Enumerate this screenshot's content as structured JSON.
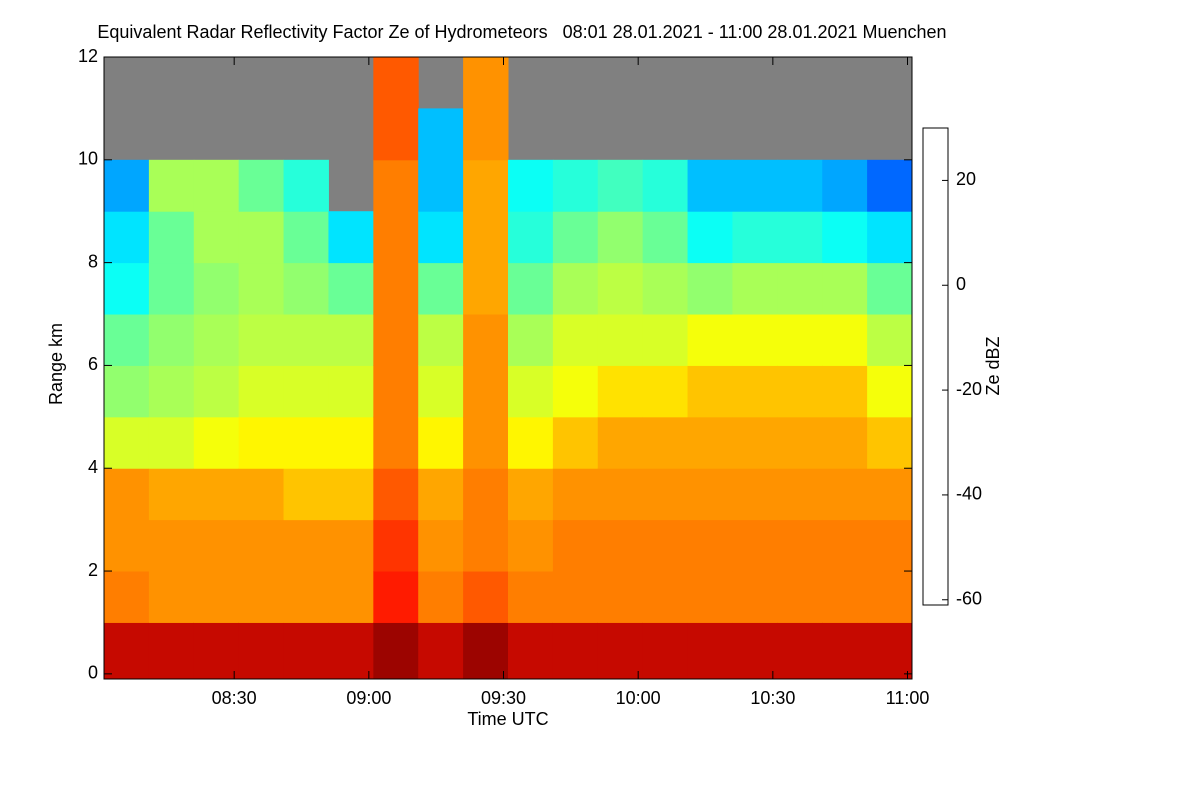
{
  "chart_data": {
    "type": "heatmap",
    "title": "Equivalent Radar Reflectivity Factor Ze of Hydrometeors   08:01 28.01.2021 - 11:00 28.01.2021 Muenchen",
    "x_label": "Time UTC",
    "y_label": "Range km",
    "colorbar_label": "Ze dBZ",
    "xlim": [
      481,
      661
    ],
    "xticks": [
      {
        "value": 510,
        "label": "08:30"
      },
      {
        "value": 540,
        "label": "09:00"
      },
      {
        "value": 570,
        "label": "09:30"
      },
      {
        "value": 600,
        "label": "10:00"
      },
      {
        "value": 630,
        "label": "10:30"
      },
      {
        "value": 660,
        "label": "11:00"
      }
    ],
    "ylim": [
      -0.1,
      12
    ],
    "yticks": [
      0,
      2,
      4,
      6,
      8,
      10,
      12
    ],
    "zlim": [
      -61,
      30
    ],
    "zticks": [
      -60,
      -40,
      -20,
      0,
      20
    ],
    "x_edges": [
      481,
      491,
      501,
      511,
      521,
      531,
      541,
      551,
      561,
      571,
      581,
      591,
      601,
      611,
      621,
      631,
      641,
      651,
      661
    ],
    "y_edges": [
      0,
      1,
      2,
      3,
      4,
      5,
      6,
      7,
      8,
      9,
      10,
      11,
      12
    ],
    "background_color": "#808080",
    "z": [
      [
        25,
        12,
        10,
        10,
        -5,
        -12,
        -15,
        -22,
        -25,
        -30,
        null,
        null
      ],
      [
        25,
        10,
        10,
        8,
        -5,
        -10,
        -12,
        -15,
        -15,
        -10,
        null,
        null
      ],
      [
        25,
        10,
        10,
        8,
        -2,
        -8,
        -10,
        -12,
        -10,
        -10,
        null,
        null
      ],
      [
        25,
        10,
        10,
        8,
        0,
        -5,
        -8,
        -10,
        -10,
        -15,
        null,
        null
      ],
      [
        25,
        10,
        10,
        5,
        0,
        -5,
        -8,
        -12,
        -15,
        -20,
        null,
        null
      ],
      [
        25,
        10,
        10,
        5,
        0,
        -5,
        -8,
        -15,
        -25,
        null,
        null,
        null
      ],
      [
        28,
        20,
        18,
        15,
        12,
        12,
        12,
        12,
        12,
        12,
        15,
        15
      ],
      [
        25,
        12,
        10,
        8,
        0,
        -5,
        -8,
        -15,
        -25,
        -28,
        -28,
        null
      ],
      [
        28,
        15,
        12,
        12,
        10,
        10,
        10,
        8,
        8,
        8,
        10,
        10
      ],
      [
        25,
        12,
        10,
        8,
        0,
        -5,
        -10,
        -15,
        -20,
        -22,
        null,
        null
      ],
      [
        25,
        12,
        12,
        10,
        5,
        -2,
        -5,
        -10,
        -15,
        -20,
        null,
        null
      ],
      [
        25,
        12,
        12,
        10,
        8,
        2,
        -5,
        -8,
        -12,
        -18,
        null,
        null
      ],
      [
        25,
        12,
        12,
        10,
        8,
        2,
        -5,
        -10,
        -15,
        -20,
        null,
        null
      ],
      [
        25,
        12,
        12,
        10,
        8,
        5,
        -2,
        -12,
        -22,
        -28,
        null,
        null
      ],
      [
        25,
        12,
        12,
        10,
        8,
        5,
        -2,
        -10,
        -20,
        -28,
        null,
        null
      ],
      [
        25,
        12,
        12,
        10,
        8,
        5,
        -2,
        -10,
        -20,
        -28,
        null,
        null
      ],
      [
        25,
        12,
        12,
        10,
        8,
        5,
        -2,
        -10,
        -22,
        -30,
        null,
        null
      ],
      [
        25,
        12,
        12,
        10,
        5,
        -2,
        -8,
        -15,
        -25,
        -35,
        null,
        null
      ]
    ]
  }
}
